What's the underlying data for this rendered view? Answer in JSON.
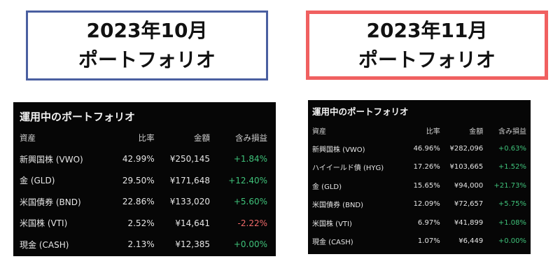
{
  "colors": {
    "positive": "#3fc27a",
    "negative": "#f06a6a"
  },
  "october": {
    "heading_line1": "2023年10月",
    "heading_line2": "ポートフォリオ",
    "panel_title": "運用中のポートフォリオ",
    "headers": {
      "asset": "資産",
      "ratio": "比率",
      "amount": "金額",
      "gain": "含み損益"
    },
    "rows": [
      {
        "name": "新興国株 (VWO)",
        "ratio": "42.99%",
        "amount": "¥250,145",
        "change": "+1.84%",
        "sign": "pos"
      },
      {
        "name": "金 (GLD)",
        "ratio": "29.50%",
        "amount": "¥171,648",
        "change": "+12.40%",
        "sign": "pos"
      },
      {
        "name": "米国債券 (BND)",
        "ratio": "22.86%",
        "amount": "¥133,020",
        "change": "+5.60%",
        "sign": "pos"
      },
      {
        "name": "米国株 (VTI)",
        "ratio": "2.52%",
        "amount": "¥14,641",
        "change": "-2.22%",
        "sign": "neg"
      },
      {
        "name": "現金 (CASH)",
        "ratio": "2.13%",
        "amount": "¥12,385",
        "change": "+0.00%",
        "sign": "pos"
      }
    ]
  },
  "november": {
    "heading_line1": "2023年11月",
    "heading_line2": "ポートフォリオ",
    "panel_title": "運用中のポートフォリオ",
    "headers": {
      "asset": "資産",
      "ratio": "比率",
      "amount": "金額",
      "gain": "含み損益"
    },
    "rows": [
      {
        "name": "新興国株 (VWO)",
        "ratio": "46.96%",
        "amount": "¥282,096",
        "change": "+0.63%",
        "sign": "pos"
      },
      {
        "name": "ハイイールド債 (HYG)",
        "ratio": "17.26%",
        "amount": "¥103,665",
        "change": "+1.52%",
        "sign": "pos"
      },
      {
        "name": "金 (GLD)",
        "ratio": "15.65%",
        "amount": "¥94,000",
        "change": "+21.73%",
        "sign": "pos"
      },
      {
        "name": "米国債券 (BND)",
        "ratio": "12.09%",
        "amount": "¥72,657",
        "change": "+5.75%",
        "sign": "pos"
      },
      {
        "name": "米国株 (VTI)",
        "ratio": "6.97%",
        "amount": "¥41,899",
        "change": "+1.08%",
        "sign": "pos"
      },
      {
        "name": "現金 (CASH)",
        "ratio": "1.07%",
        "amount": "¥6,449",
        "change": "+0.00%",
        "sign": "pos"
      }
    ]
  }
}
